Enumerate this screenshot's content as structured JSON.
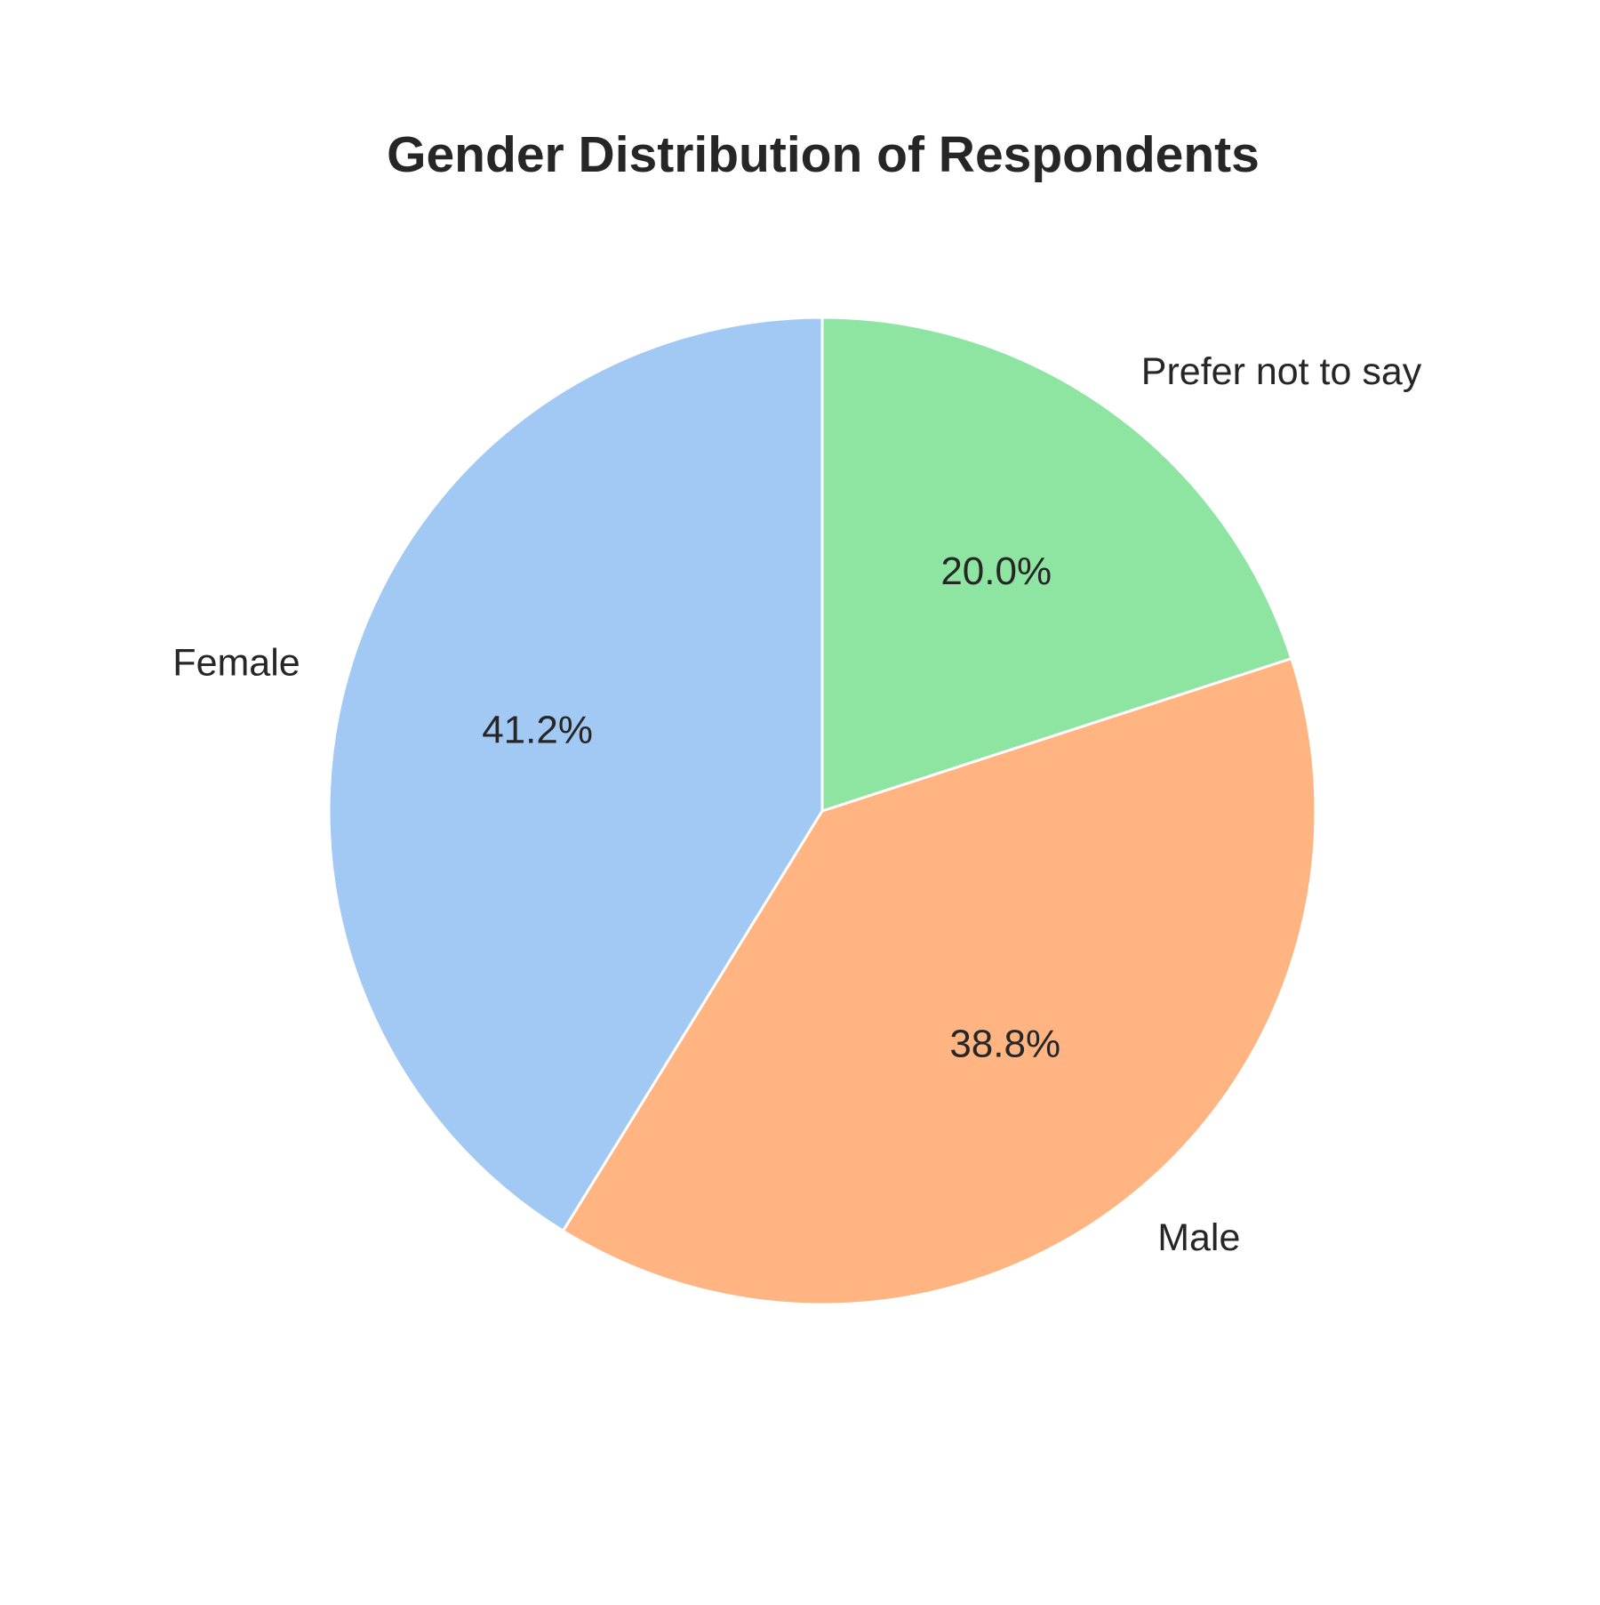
{
  "chart_data": {
    "type": "pie",
    "title": "Gender Distribution of Respondents",
    "categories": [
      "Female",
      "Male",
      "Prefer not to say"
    ],
    "values": [
      41.2,
      38.8,
      20.0
    ],
    "value_labels": [
      "41.2%",
      "38.8%",
      "20.0%"
    ],
    "colors": [
      "#a1c9f4",
      "#ffb482",
      "#8de5a1"
    ],
    "edge_color": "#ffffff",
    "start_angle_deg": 90,
    "direction": "counterclockwise",
    "legend": "none"
  }
}
